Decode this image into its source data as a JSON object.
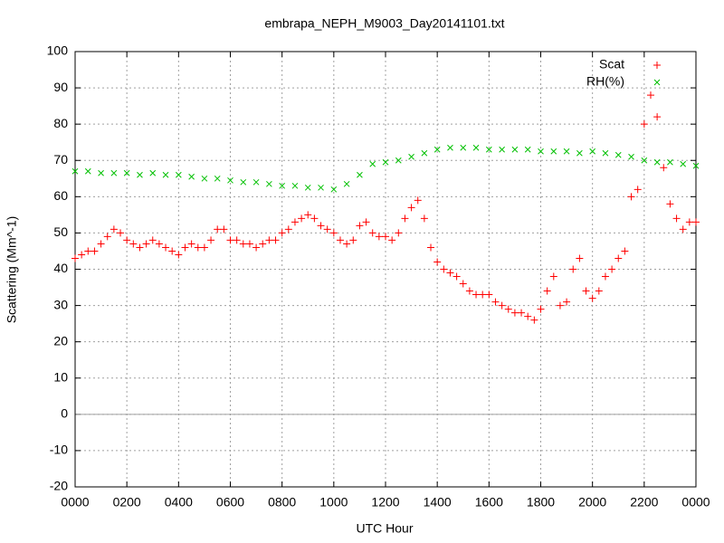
{
  "chart_data": {
    "type": "scatter",
    "title": "embrapa_NEPH_M9003_Day20141101.txt",
    "x_label": "UTC Hour",
    "y_label": "Scattering (Mm^-1)",
    "xlim": [
      0,
      24
    ],
    "ylim": [
      -20,
      100
    ],
    "xticks": [
      {
        "value": 0,
        "label": "0000"
      },
      {
        "value": 2,
        "label": "0200"
      },
      {
        "value": 4,
        "label": "0400"
      },
      {
        "value": 6,
        "label": "0600"
      },
      {
        "value": 8,
        "label": "0800"
      },
      {
        "value": 10,
        "label": "1000"
      },
      {
        "value": 12,
        "label": "1200"
      },
      {
        "value": 14,
        "label": "1400"
      },
      {
        "value": 16,
        "label": "1600"
      },
      {
        "value": 18,
        "label": "1800"
      },
      {
        "value": 20,
        "label": "2000"
      },
      {
        "value": 22,
        "label": "2200"
      },
      {
        "value": 24,
        "label": "0000"
      }
    ],
    "yticks": [
      -20,
      -10,
      0,
      10,
      20,
      30,
      40,
      50,
      60,
      70,
      80,
      90,
      100
    ],
    "grid": true,
    "legend": "top-right",
    "series": [
      {
        "name": "Scat",
        "color": "#ff0000",
        "marker": "plus",
        "x": [
          0,
          0.25,
          0.5,
          0.75,
          1,
          1.25,
          1.5,
          1.75,
          2,
          2.25,
          2.5,
          2.75,
          3,
          3.25,
          3.5,
          3.75,
          4,
          4.25,
          4.5,
          4.75,
          5,
          5.25,
          5.5,
          5.75,
          6,
          6.25,
          6.5,
          6.75,
          7,
          7.25,
          7.5,
          7.75,
          8,
          8.25,
          8.5,
          8.75,
          9,
          9.25,
          9.5,
          9.75,
          10,
          10.25,
          10.5,
          10.75,
          11,
          11.25,
          11.5,
          11.75,
          12,
          12.25,
          12.5,
          12.75,
          13,
          13.25,
          13.5,
          13.75,
          14,
          14.25,
          14.5,
          14.75,
          15,
          15.25,
          15.5,
          15.75,
          16,
          16.25,
          16.5,
          16.75,
          17,
          17.25,
          17.5,
          17.75,
          18,
          18.25,
          18.5,
          18.75,
          19,
          19.25,
          19.5,
          19.75,
          20,
          20.25,
          20.5,
          20.75,
          21,
          21.25,
          21.5,
          21.75,
          22,
          22.25,
          22.5,
          22.75,
          23,
          23.25,
          23.5,
          23.75,
          24
        ],
        "values": [
          43,
          44,
          45,
          45,
          47,
          49,
          51,
          50,
          48,
          47,
          46,
          47,
          48,
          47,
          46,
          45,
          44,
          46,
          47,
          46,
          46,
          48,
          51,
          51,
          48,
          48,
          47,
          47,
          46,
          47,
          48,
          48,
          50,
          51,
          53,
          54,
          55,
          54,
          52,
          51,
          50,
          48,
          47,
          48,
          52,
          53,
          50,
          49,
          49,
          48,
          50,
          54,
          57,
          59,
          54,
          46,
          42,
          40,
          39,
          38,
          36,
          34,
          33,
          33,
          33,
          31,
          30,
          29,
          28,
          28,
          27,
          26,
          29,
          34,
          38,
          30,
          31,
          40,
          43,
          34,
          32,
          34,
          38,
          40,
          43,
          45,
          60,
          62,
          80,
          88,
          82,
          68,
          58,
          54,
          51,
          53,
          53
        ]
      },
      {
        "name": "RH(%)",
        "color": "#00c000",
        "marker": "cross",
        "x": [
          0,
          0.5,
          1,
          1.5,
          2,
          2.5,
          3,
          3.5,
          4,
          4.5,
          5,
          5.5,
          6,
          6.5,
          7,
          7.5,
          8,
          8.5,
          9,
          9.5,
          10,
          10.5,
          11,
          11.5,
          12,
          12.5,
          13,
          13.5,
          14,
          14.5,
          15,
          15.5,
          16,
          16.5,
          17,
          17.5,
          18,
          18.5,
          19,
          19.5,
          20,
          20.5,
          21,
          21.5,
          22,
          22.5,
          23,
          23.5,
          24
        ],
        "values": [
          67,
          67,
          66.5,
          66.5,
          66.5,
          66,
          66.5,
          66,
          66,
          65.5,
          65,
          65,
          64.5,
          64,
          64,
          63.5,
          63,
          63,
          62.5,
          62.5,
          62,
          63.5,
          66,
          69,
          69.5,
          70,
          71,
          72,
          73,
          73.5,
          73.5,
          73.5,
          73,
          73,
          73,
          73,
          72.5,
          72.5,
          72.5,
          72,
          72.5,
          72,
          71.5,
          71,
          70,
          69.5,
          69.5,
          69,
          68.5
        ]
      }
    ]
  }
}
